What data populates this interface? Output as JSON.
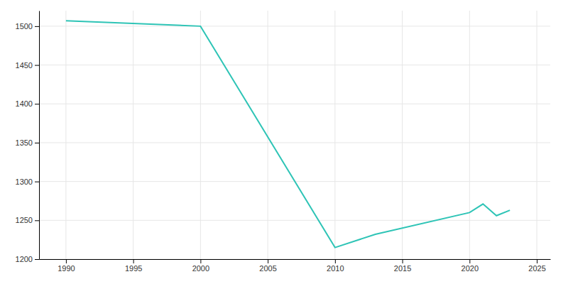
{
  "chart_data": {
    "type": "line",
    "x": [
      1990,
      2000,
      2010,
      2013,
      2020,
      2021,
      2022,
      2023
    ],
    "values": [
      1507,
      1500,
      1215,
      1232,
      1260,
      1271,
      1256,
      1263
    ],
    "color": "#2ec4b6",
    "xlim": [
      1988,
      2026
    ],
    "ylim": [
      1200,
      1520
    ],
    "xticks": [
      1990,
      1995,
      2000,
      2005,
      2010,
      2015,
      2020,
      2025
    ],
    "yticks": [
      1200,
      1250,
      1300,
      1350,
      1400,
      1450,
      1500
    ],
    "grid": true
  }
}
